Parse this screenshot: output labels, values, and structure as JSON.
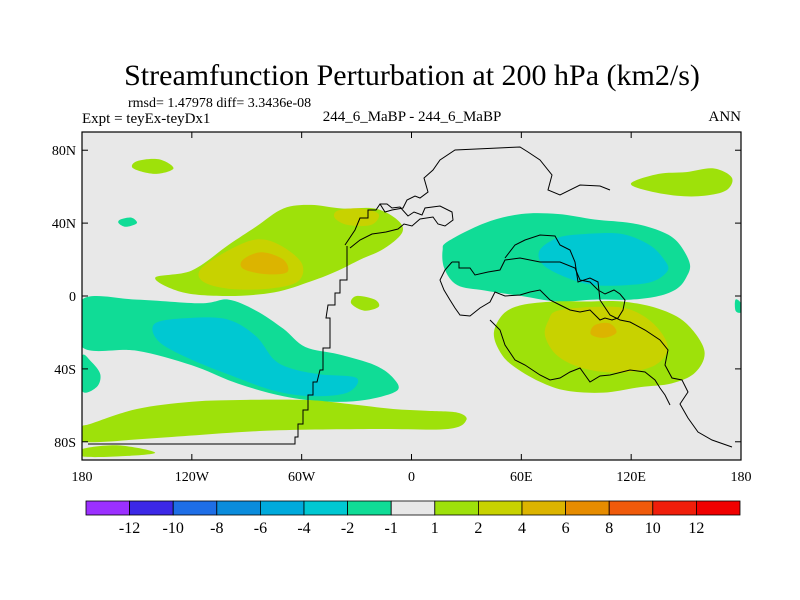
{
  "chart_data": {
    "type": "filled-contour-map",
    "title": "Streamfunction Perturbation at 200 hPa (km2/s)",
    "stats_text": "rmsd= 1.47978 diff= 3.3436e-08",
    "left_label": "Expt = teyEx-teyDx1",
    "center_label": "244_6_MaBP - 244_6_MaBP",
    "right_label": "ANN",
    "x_ticks": [
      {
        "value": -180,
        "label": "180"
      },
      {
        "value": -120,
        "label": "120W"
      },
      {
        "value": -60,
        "label": "60W"
      },
      {
        "value": 0,
        "label": "0"
      },
      {
        "value": 60,
        "label": "60E"
      },
      {
        "value": 120,
        "label": "120E"
      },
      {
        "value": 180,
        "label": "180"
      }
    ],
    "y_ticks": [
      {
        "value": 80,
        "label": "80N"
      },
      {
        "value": 40,
        "label": "40N"
      },
      {
        "value": 0,
        "label": "0"
      },
      {
        "value": -40,
        "label": "40S"
      },
      {
        "value": -80,
        "label": "80S"
      }
    ],
    "xlim": [
      -180,
      180
    ],
    "ylim": [
      -90,
      90
    ],
    "colorbar": {
      "levels": [
        "-12",
        "-10",
        "-8",
        "-6",
        "-4",
        "-2",
        "-1",
        "1",
        "2",
        "4",
        "6",
        "8",
        "10",
        "12"
      ],
      "colors": [
        "#9b30ff",
        "#3c28e6",
        "#1e6ee6",
        "#0a8cdc",
        "#00aadc",
        "#00c8d2",
        "#10dc96",
        "#e8e8e8",
        "#9ee10a",
        "#c8d200",
        "#dcb400",
        "#e68c00",
        "#f05a0a",
        "#f01e0a",
        "#f00000"
      ]
    },
    "blobs": [
      {
        "level": "1 to 2",
        "color": "#9ee10a",
        "pts": [
          [
            -152,
            70
          ],
          [
            -140,
            67
          ],
          [
            -130,
            70
          ],
          [
            -138,
            75
          ],
          [
            -150,
            74
          ]
        ]
      },
      {
        "level": "1 to 2",
        "color": "#9ee10a",
        "pts": [
          [
            -140,
            10
          ],
          [
            -120,
            14
          ],
          [
            -100,
            28
          ],
          [
            -85,
            38
          ],
          [
            -70,
            48
          ],
          [
            -55,
            50
          ],
          [
            -38,
            48
          ],
          [
            -20,
            48
          ],
          [
            -8,
            42
          ],
          [
            -5,
            35
          ],
          [
            -15,
            26
          ],
          [
            -28,
            20
          ],
          [
            -40,
            14
          ],
          [
            -55,
            8
          ],
          [
            -75,
            2
          ],
          [
            -100,
            0
          ],
          [
            -125,
            2
          ]
        ]
      },
      {
        "level": "2 to 4",
        "color": "#c8d200",
        "pts": [
          [
            -115,
            15
          ],
          [
            -100,
            25
          ],
          [
            -85,
            31
          ],
          [
            -72,
            28
          ],
          [
            -60,
            18
          ],
          [
            -62,
            8
          ],
          [
            -78,
            4
          ],
          [
            -100,
            4
          ],
          [
            -114,
            8
          ]
        ]
      },
      {
        "level": "4 to 6",
        "color": "#dcb400",
        "pts": [
          [
            -92,
            20
          ],
          [
            -82,
            24
          ],
          [
            -70,
            20
          ],
          [
            -68,
            13
          ],
          [
            -80,
            12
          ],
          [
            -92,
            15
          ]
        ]
      },
      {
        "level": "2 to 4",
        "color": "#c8d200",
        "pts": [
          [
            -40,
            47
          ],
          [
            -28,
            48
          ],
          [
            -18,
            45
          ],
          [
            -22,
            39
          ],
          [
            -35,
            39
          ],
          [
            -42,
            43
          ]
        ]
      },
      {
        "level": "-1 to -2",
        "color": "#10dc96",
        "pts": [
          [
            -159,
            42
          ],
          [
            -153,
            43
          ],
          [
            -150,
            40
          ],
          [
            -156,
            38
          ],
          [
            -160,
            40
          ]
        ]
      },
      {
        "level": "1 to 2",
        "color": "#9ee10a",
        "pts": [
          [
            -30,
            0
          ],
          [
            -20,
            -2
          ],
          [
            -18,
            -6
          ],
          [
            -26,
            -8
          ],
          [
            -33,
            -4
          ]
        ]
      },
      {
        "level": "-1 to -2",
        "color": "#10dc96",
        "pts": [
          [
            -180,
            -2
          ],
          [
            -150,
            -2
          ],
          [
            -115,
            -4
          ],
          [
            -100,
            -2
          ],
          [
            -85,
            -8
          ],
          [
            -70,
            -18
          ],
          [
            -58,
            -28
          ],
          [
            -40,
            -32
          ],
          [
            -20,
            -38
          ],
          [
            -10,
            -45
          ],
          [
            -8,
            -52
          ],
          [
            -25,
            -57
          ],
          [
            -45,
            -58
          ],
          [
            -70,
            -55
          ],
          [
            -95,
            -48
          ],
          [
            -120,
            -38
          ],
          [
            -150,
            -30
          ],
          [
            -180,
            -28
          ]
        ]
      },
      {
        "level": "-2 to -4",
        "color": "#00c8d2",
        "pts": [
          [
            -140,
            -15
          ],
          [
            -120,
            -12
          ],
          [
            -100,
            -13
          ],
          [
            -85,
            -22
          ],
          [
            -75,
            -35
          ],
          [
            -65,
            -40
          ],
          [
            -50,
            -43
          ],
          [
            -30,
            -45
          ],
          [
            -35,
            -53
          ],
          [
            -55,
            -55
          ],
          [
            -75,
            -52
          ],
          [
            -95,
            -45
          ],
          [
            -120,
            -35
          ],
          [
            -138,
            -25
          ]
        ]
      },
      {
        "level": "-1 to -2",
        "color": "#10dc96",
        "pts": [
          [
            -180,
            -33
          ],
          [
            -175,
            -36
          ],
          [
            -170,
            -43
          ],
          [
            -172,
            -50
          ],
          [
            -180,
            -52
          ]
        ]
      },
      {
        "level": "1 to 2",
        "color": "#9ee10a",
        "pts": [
          [
            -175,
            -70
          ],
          [
            -150,
            -62
          ],
          [
            -120,
            -58
          ],
          [
            -90,
            -57
          ],
          [
            -60,
            -57
          ],
          [
            -45,
            -58
          ],
          [
            -28,
            -60
          ],
          [
            -10,
            -62
          ],
          [
            8,
            -63
          ],
          [
            25,
            -64
          ],
          [
            30,
            -68
          ],
          [
            20,
            -73
          ],
          [
            -20,
            -73
          ],
          [
            -80,
            -74
          ],
          [
            -140,
            -78
          ],
          [
            -180,
            -80
          ],
          [
            -180,
            -72
          ]
        ]
      },
      {
        "level": "1 to 2",
        "color": "#9ee10a",
        "pts": [
          [
            -180,
            -84
          ],
          [
            -160,
            -82
          ],
          [
            -140,
            -86
          ],
          [
            -160,
            -88
          ],
          [
            -180,
            -88
          ]
        ]
      },
      {
        "level": "-1 to -2",
        "color": "#10dc96",
        "pts": [
          [
            20,
            30
          ],
          [
            40,
            40
          ],
          [
            60,
            45
          ],
          [
            80,
            45
          ],
          [
            100,
            42
          ],
          [
            120,
            40
          ],
          [
            135,
            36
          ],
          [
            145,
            30
          ],
          [
            152,
            18
          ],
          [
            150,
            10
          ],
          [
            145,
            4
          ],
          [
            135,
            0
          ],
          [
            120,
            -2
          ],
          [
            100,
            -2
          ],
          [
            80,
            -3
          ],
          [
            60,
            0
          ],
          [
            40,
            3
          ],
          [
            25,
            6
          ],
          [
            18,
            15
          ],
          [
            17,
            25
          ]
        ]
      },
      {
        "level": "-2 to -4",
        "color": "#00c8d2",
        "pts": [
          [
            70,
            25
          ],
          [
            80,
            32
          ],
          [
            95,
            34
          ],
          [
            115,
            34
          ],
          [
            130,
            28
          ],
          [
            138,
            20
          ],
          [
            140,
            14
          ],
          [
            132,
            8
          ],
          [
            118,
            6
          ],
          [
            100,
            6
          ],
          [
            85,
            10
          ],
          [
            72,
            17
          ]
        ]
      },
      {
        "level": "1 to 2",
        "color": "#9ee10a",
        "pts": [
          [
            60,
            -5
          ],
          [
            78,
            -3
          ],
          [
            95,
            -3
          ],
          [
            115,
            -3
          ],
          [
            135,
            -7
          ],
          [
            150,
            -15
          ],
          [
            160,
            -30
          ],
          [
            155,
            -42
          ],
          [
            142,
            -48
          ],
          [
            125,
            -50
          ],
          [
            105,
            -53
          ],
          [
            85,
            -52
          ],
          [
            70,
            -47
          ],
          [
            55,
            -38
          ],
          [
            48,
            -30
          ],
          [
            45,
            -20
          ],
          [
            50,
            -10
          ]
        ]
      },
      {
        "level": "2 to 4",
        "color": "#c8d200",
        "pts": [
          [
            80,
            -8
          ],
          [
            100,
            -6
          ],
          [
            118,
            -7
          ],
          [
            132,
            -15
          ],
          [
            140,
            -28
          ],
          [
            133,
            -38
          ],
          [
            115,
            -42
          ],
          [
            95,
            -40
          ],
          [
            80,
            -33
          ],
          [
            73,
            -22
          ],
          [
            75,
            -13
          ]
        ]
      },
      {
        "level": "4 to 6",
        "color": "#dcb400",
        "pts": [
          [
            100,
            -16
          ],
          [
            108,
            -15
          ],
          [
            112,
            -20
          ],
          [
            105,
            -23
          ],
          [
            98,
            -21
          ]
        ]
      },
      {
        "level": "1 to 2",
        "color": "#9ee10a",
        "pts": [
          [
            120,
            62
          ],
          [
            135,
            67
          ],
          [
            150,
            68
          ],
          [
            165,
            70
          ],
          [
            175,
            65
          ],
          [
            172,
            58
          ],
          [
            160,
            55
          ],
          [
            145,
            55
          ],
          [
            128,
            58
          ]
        ]
      },
      {
        "level": "-1 to -2",
        "color": "#10dc96",
        "pts": [
          [
            180,
            -4
          ],
          [
            177,
            -2
          ],
          [
            177,
            -8
          ],
          [
            180,
            -9
          ]
        ]
      }
    ]
  }
}
